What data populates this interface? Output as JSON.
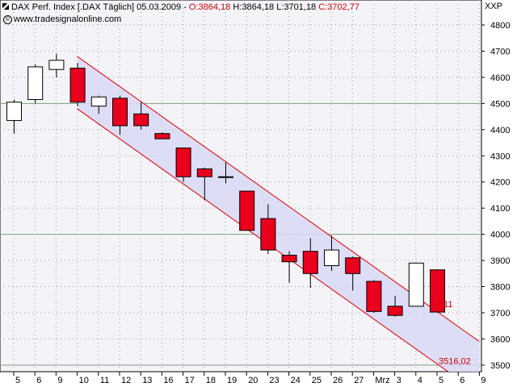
{
  "header": {
    "instrument": "DAX Perf. Index [.DAX  Täglich] 05.03.2009 - ",
    "open": "O:3864,18",
    "high": "H:3864,18",
    "low": "L:3701,18",
    "close": "C:3702,77",
    "source": "www.tradesignalonline.com",
    "copyright_symbol": "©"
  },
  "axis": {
    "symbol_label": "XXP"
  },
  "colors": {
    "up_fill": "#ffffff",
    "down_fill": "#e8001c",
    "channel_line": "#dd0000",
    "channel_fill": "#d8d8f6",
    "plot_bg": "#f4f4f8"
  },
  "chart_data": {
    "type": "candlestick",
    "ylim": [
      3450,
      4850
    ],
    "y_ticks": [
      3500,
      3600,
      3700,
      3800,
      3900,
      4000,
      4100,
      4200,
      4300,
      4400,
      4500,
      4600,
      4700,
      4800
    ],
    "reference_lines": [
      4500,
      4000,
      3500
    ],
    "grid": true,
    "categories": [
      "5",
      "6",
      "9",
      "10",
      "11",
      "12",
      "13",
      "16",
      "17",
      "18",
      "19",
      "20",
      "23",
      "24",
      "25",
      "26",
      "27",
      "Mrz",
      "3",
      "4",
      "5",
      "6",
      "9"
    ],
    "candles": [
      {
        "o": 4435,
        "h": 4515,
        "l": 4385,
        "c": 4505
      },
      {
        "o": 4515,
        "h": 4650,
        "l": 4500,
        "c": 4640
      },
      {
        "o": 4630,
        "h": 4690,
        "l": 4600,
        "c": 4665
      },
      {
        "o": 4635,
        "h": 4655,
        "l": 4490,
        "c": 4505
      },
      {
        "o": 4490,
        "h": 4530,
        "l": 4460,
        "c": 4525
      },
      {
        "o": 4520,
        "h": 4530,
        "l": 4380,
        "c": 4415
      },
      {
        "o": 4460,
        "h": 4505,
        "l": 4400,
        "c": 4415
      },
      {
        "o": 4385,
        "h": 4390,
        "l": 4365,
        "c": 4365
      },
      {
        "o": 4330,
        "h": 4330,
        "l": 4200,
        "c": 4220
      },
      {
        "o": 4250,
        "h": 4255,
        "l": 4130,
        "c": 4220
      },
      {
        "o": 4220,
        "h": 4275,
        "l": 4195,
        "c": 4220
      },
      {
        "o": 4165,
        "h": 4165,
        "l": 4015,
        "c": 4015
      },
      {
        "o": 4060,
        "h": 4115,
        "l": 3925,
        "c": 3940
      },
      {
        "o": 3920,
        "h": 3935,
        "l": 3815,
        "c": 3895
      },
      {
        "o": 3935,
        "h": 3985,
        "l": 3795,
        "c": 3850
      },
      {
        "o": 3880,
        "h": 3995,
        "l": 3860,
        "c": 3940
      },
      {
        "o": 3910,
        "h": 3915,
        "l": 3785,
        "c": 3850
      },
      {
        "o": 3820,
        "h": 3825,
        "l": 3700,
        "c": 3705
      },
      {
        "o": 3725,
        "h": 3765,
        "l": 3685,
        "c": 3690
      },
      {
        "o": 3725,
        "h": 3890,
        "l": 3725,
        "c": 3890
      },
      {
        "o": 3864.18,
        "h": 3864.18,
        "l": 3701.18,
        "c": 3702.77
      }
    ],
    "channel": {
      "upper": {
        "x1": 3,
        "y1": 4680,
        "x2": 22,
        "y2": 3590
      },
      "lower": {
        "x1": 3,
        "y1": 4480,
        "x2": 22,
        "y2": 3390
      }
    },
    "annotations": [
      {
        "text": "711",
        "x": 20,
        "y": 3733
      },
      {
        "text": "3516,02",
        "x": 20,
        "y": 3516.02
      }
    ]
  }
}
